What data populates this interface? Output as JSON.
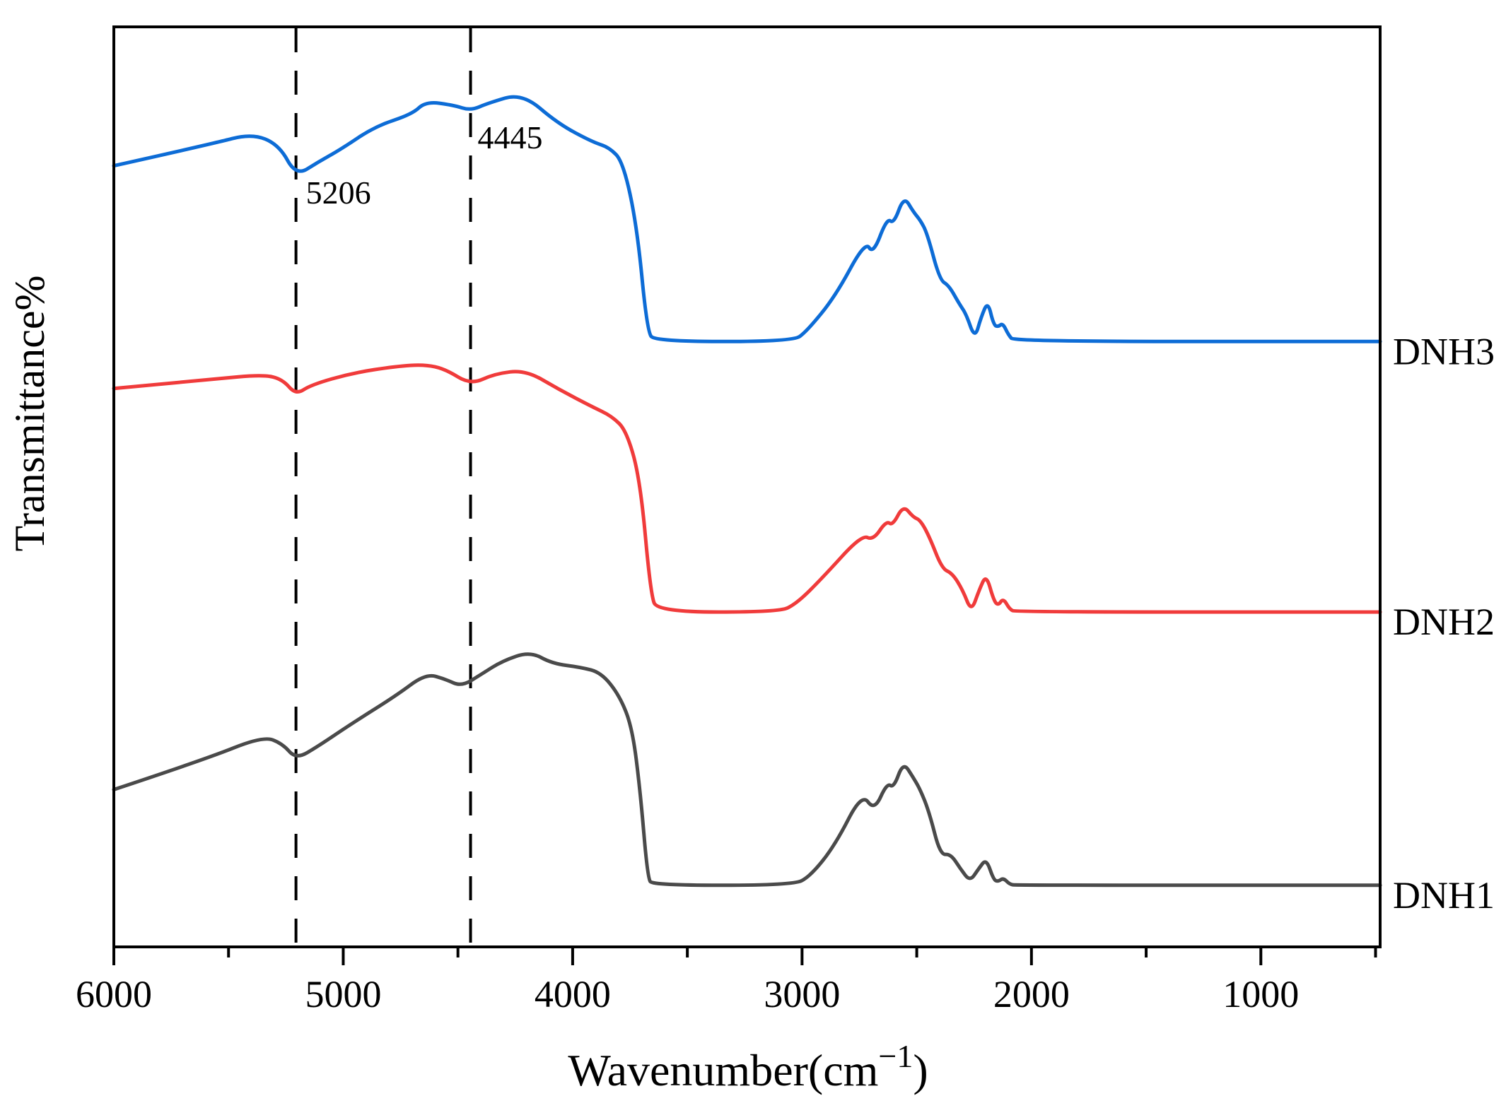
{
  "chart_data": {
    "type": "line",
    "title": "",
    "xlabel": "Wavenumber(cm−1)",
    "xlabel_parts": {
      "main": "Wavenumber(cm",
      "sup": "−1",
      "close": ")"
    },
    "ylabel": "Transmittance%",
    "grid": false,
    "legend_position": "right-outside",
    "x_axis": {
      "direction": "reversed",
      "range": [
        6000,
        480
      ],
      "major_ticks": [
        6000,
        5000,
        4000,
        3000,
        2000,
        1000
      ],
      "tick_labels": [
        "6000",
        "5000",
        "4000",
        "3000",
        "2000",
        "1000"
      ],
      "minor_ticks": [
        5500,
        4500,
        3500,
        2500,
        1500,
        500
      ]
    },
    "y_axis": {
      "range": [
        0,
        100
      ],
      "ticks": [],
      "tick_labels": []
    },
    "annotations": [
      {
        "label": "5206",
        "x": 5206
      },
      {
        "label": "4445",
        "x": 4445
      }
    ],
    "colors": {
      "dnh3": "#0d6cd6",
      "dnh2": "#f03b3b",
      "dnh1": "#4a4a4a",
      "axis": "#000000",
      "dashed_line": "#000000"
    },
    "series": [
      {
        "name": "DNH3",
        "color": "#0d6cd6",
        "points": [
          [
            6000,
            84.9
          ],
          [
            5570,
            87.3
          ],
          [
            5400,
            88.4
          ],
          [
            5280,
            87.2
          ],
          [
            5206,
            83.8
          ],
          [
            5110,
            85.3
          ],
          [
            5010,
            86.7
          ],
          [
            4860,
            89.2
          ],
          [
            4700,
            90.5
          ],
          [
            4640,
            91.9
          ],
          [
            4520,
            91.5
          ],
          [
            4445,
            90.9
          ],
          [
            4370,
            91.7
          ],
          [
            4220,
            92.8
          ],
          [
            4065,
            89.5
          ],
          [
            3915,
            87.5
          ],
          [
            3840,
            86.9
          ],
          [
            3780,
            85.3
          ],
          [
            3720,
            78.4
          ],
          [
            3675,
            66.9
          ],
          [
            3640,
            65.8
          ],
          [
            3040,
            65.8
          ],
          [
            2980,
            66.9
          ],
          [
            2855,
            70.7
          ],
          [
            2725,
            76.7
          ],
          [
            2690,
            75.3
          ],
          [
            2630,
            79.2
          ],
          [
            2600,
            78.6
          ],
          [
            2556,
            81.6
          ],
          [
            2515,
            79.9
          ],
          [
            2485,
            79.0
          ],
          [
            2455,
            77.6
          ],
          [
            2400,
            72.5
          ],
          [
            2360,
            71.9
          ],
          [
            2315,
            69.9
          ],
          [
            2285,
            68.8
          ],
          [
            2247,
            66.1
          ],
          [
            2220,
            68.4
          ],
          [
            2190,
            70.2
          ],
          [
            2165,
            67.6
          ],
          [
            2145,
            67.4
          ],
          [
            2125,
            67.8
          ],
          [
            2100,
            66.5
          ],
          [
            2075,
            65.8
          ],
          [
            480,
            65.8
          ]
        ]
      },
      {
        "name": "DNH2",
        "color": "#f03b3b",
        "points": [
          [
            6000,
            60.7
          ],
          [
            5570,
            61.7
          ],
          [
            5350,
            62.2
          ],
          [
            5265,
            61.7
          ],
          [
            5206,
            60.0
          ],
          [
            5140,
            61.1
          ],
          [
            4955,
            62.4
          ],
          [
            4770,
            63.1
          ],
          [
            4645,
            63.3
          ],
          [
            4555,
            62.8
          ],
          [
            4445,
            61.1
          ],
          [
            4340,
            62.3
          ],
          [
            4205,
            62.7
          ],
          [
            4060,
            60.6
          ],
          [
            3915,
            58.7
          ],
          [
            3830,
            57.7
          ],
          [
            3765,
            56.1
          ],
          [
            3705,
            50.7
          ],
          [
            3660,
            38.4
          ],
          [
            3630,
            36.4
          ],
          [
            3100,
            36.4
          ],
          [
            3025,
            37.3
          ],
          [
            2915,
            40.0
          ],
          [
            2740,
            44.8
          ],
          [
            2690,
            44.2
          ],
          [
            2633,
            46.3
          ],
          [
            2605,
            45.8
          ],
          [
            2559,
            48.0
          ],
          [
            2515,
            46.7
          ],
          [
            2485,
            46.4
          ],
          [
            2445,
            44.6
          ],
          [
            2390,
            41.1
          ],
          [
            2345,
            40.6
          ],
          [
            2300,
            38.8
          ],
          [
            2262,
            36.4
          ],
          [
            2228,
            38.8
          ],
          [
            2197,
            40.5
          ],
          [
            2165,
            37.7
          ],
          [
            2145,
            37.1
          ],
          [
            2123,
            37.9
          ],
          [
            2095,
            36.7
          ],
          [
            2070,
            36.4
          ],
          [
            480,
            36.4
          ]
        ]
      },
      {
        "name": "DNH1",
        "color": "#4a4a4a",
        "points": [
          [
            6000,
            17.1
          ],
          [
            5600,
            20.4
          ],
          [
            5350,
            22.9
          ],
          [
            5265,
            22.1
          ],
          [
            5206,
            20.4
          ],
          [
            5110,
            21.8
          ],
          [
            4955,
            24.4
          ],
          [
            4770,
            27.3
          ],
          [
            4640,
            29.7
          ],
          [
            4555,
            29.1
          ],
          [
            4485,
            28.3
          ],
          [
            4400,
            29.6
          ],
          [
            4305,
            31.1
          ],
          [
            4185,
            32.1
          ],
          [
            4090,
            30.8
          ],
          [
            3965,
            30.4
          ],
          [
            3875,
            29.8
          ],
          [
            3795,
            27.3
          ],
          [
            3740,
            23.8
          ],
          [
            3705,
            16.9
          ],
          [
            3673,
            7.5
          ],
          [
            3650,
            6.7
          ],
          [
            3040,
            6.7
          ],
          [
            2963,
            7.7
          ],
          [
            2855,
            11.1
          ],
          [
            2740,
            16.7
          ],
          [
            2685,
            14.8
          ],
          [
            2630,
            17.8
          ],
          [
            2600,
            17.3
          ],
          [
            2559,
            20.1
          ],
          [
            2515,
            18.4
          ],
          [
            2485,
            17.1
          ],
          [
            2445,
            14.6
          ],
          [
            2398,
            10.0
          ],
          [
            2352,
            10.1
          ],
          [
            2310,
            8.5
          ],
          [
            2268,
            7.1
          ],
          [
            2230,
            8.5
          ],
          [
            2197,
            9.6
          ],
          [
            2165,
            7.3
          ],
          [
            2145,
            7.1
          ],
          [
            2123,
            7.5
          ],
          [
            2095,
            6.8
          ],
          [
            2068,
            6.7
          ],
          [
            480,
            6.7
          ]
        ]
      }
    ]
  }
}
